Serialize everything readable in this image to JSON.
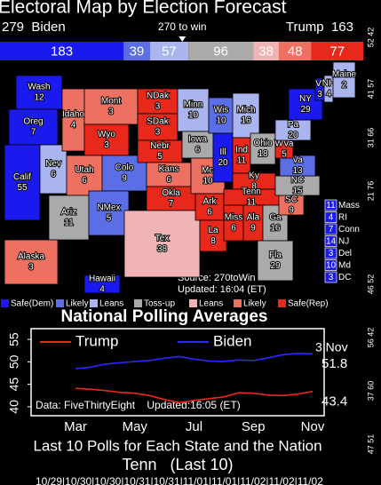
{
  "chart_data": [
    {
      "type": "stacked-bar",
      "title": "Electoral Map by Election Forecast",
      "left_label": "279  Biden",
      "right_label": "Trump  163",
      "threshold": {
        "value": 270,
        "label": "270 to win"
      },
      "series": [
        {
          "name": "Safe(Dem)",
          "color": "#1a1aee",
          "values": [
            183
          ]
        },
        {
          "name": "Likely",
          "color": "#5b6ee6",
          "values": [
            39
          ]
        },
        {
          "name": "Leans",
          "color": "#aab4ee",
          "values": [
            57
          ]
        },
        {
          "name": "Toss-up",
          "color": "#aaaaaa",
          "values": [
            96
          ]
        },
        {
          "name": "Leans",
          "color": "#f0b4b4",
          "values": [
            38
          ]
        },
        {
          "name": "Likely",
          "color": "#ee7060",
          "values": [
            48
          ]
        },
        {
          "name": "Safe(Rep)",
          "color": "#e8281a",
          "values": [
            77
          ]
        }
      ]
    },
    {
      "type": "line",
      "title": "National Polling Averages",
      "categories": [
        "Mar",
        null,
        null,
        null,
        "May",
        null,
        null,
        null,
        "Jul",
        null,
        null,
        null,
        "Sep",
        null,
        null,
        null,
        "Nov"
      ],
      "series": [
        {
          "name": "Trump",
          "color": "#e8281a",
          "values": [
            44.1,
            43.9,
            43.6,
            43.2,
            43.0,
            42.5,
            41.6,
            40.9,
            41.4,
            41.8,
            42.2,
            43.1,
            43.0,
            42.6,
            42.5,
            42.8,
            43.4
          ]
        },
        {
          "name": "Biden",
          "color": "#2a2aff",
          "values": [
            48.5,
            48.8,
            49.5,
            49.8,
            50.1,
            50.3,
            50.8,
            51.2,
            50.6,
            50.2,
            50.1,
            50.4,
            50.3,
            50.9,
            51.6,
            51.9,
            51.8
          ]
        }
      ],
      "end_label": "3 Nov",
      "note": "Data: FiveThirtyEight    Updated:16:05 (ET)",
      "ylim": [
        38,
        57
      ],
      "yticks": [
        40,
        45,
        50,
        55
      ]
    }
  ],
  "map": {
    "source": "Source: 270toWin",
    "updated": "Updated: 16:04 (ET)",
    "states": [
      {
        "label": "Wash",
        "ev": 12,
        "color": "#1a1aee"
      },
      {
        "label": "Oreg",
        "ev": 7,
        "color": "#1a1aee"
      },
      {
        "label": "Calif",
        "ev": 55,
        "color": "#1a1aee"
      },
      {
        "label": "Nev",
        "ev": 6,
        "color": "#aab4ee"
      },
      {
        "label": "Idaho",
        "ev": 4,
        "color": "#ee7060"
      },
      {
        "label": "Mont",
        "ev": 3,
        "color": "#ee7060"
      },
      {
        "label": "Wyo",
        "ev": 3,
        "color": "#e8281a"
      },
      {
        "label": "Utah",
        "ev": 6,
        "color": "#ee7060"
      },
      {
        "label": "Colo",
        "ev": 9,
        "color": "#5b6ee6"
      },
      {
        "label": "Ariz",
        "ev": 11,
        "color": "#aaaaaa"
      },
      {
        "label": "NMex",
        "ev": 5,
        "color": "#5b6ee6"
      },
      {
        "label": "NDak",
        "ev": 3,
        "color": "#e8281a"
      },
      {
        "label": "SDak",
        "ev": 3,
        "color": "#e8281a"
      },
      {
        "label": "Nebr",
        "ev": 5,
        "color": "#e8281a"
      },
      {
        "label": "Kans",
        "ev": 6,
        "color": "#ee7060"
      },
      {
        "label": "Okla",
        "ev": 7,
        "color": "#e8281a"
      },
      {
        "label": "Tex",
        "ev": 38,
        "color": "#f0b4b4"
      },
      {
        "label": "Minn",
        "ev": 10,
        "color": "#aab4ee"
      },
      {
        "label": "Iowa",
        "ev": 6,
        "color": "#aaaaaa"
      },
      {
        "label": "Mo",
        "ev": 10,
        "color": "#ee7060"
      },
      {
        "label": "Ark",
        "ev": 6,
        "color": "#e8281a"
      },
      {
        "label": "La",
        "ev": 8,
        "color": "#e8281a"
      },
      {
        "label": "Wis",
        "ev": 10,
        "color": "#5b6ee6"
      },
      {
        "label": "Ill",
        "ev": 20,
        "color": "#1a1aee"
      },
      {
        "label": "Mich",
        "ev": 16,
        "color": "#aab4ee"
      },
      {
        "label": "Ind",
        "ev": 11,
        "color": "#e8281a"
      },
      {
        "label": "Ohio",
        "ev": 18,
        "color": "#aaaaaa"
      },
      {
        "label": "Ky",
        "ev": 8,
        "color": "#e8281a"
      },
      {
        "label": "Tenn",
        "ev": 11,
        "color": "#e8281a"
      },
      {
        "label": "Miss",
        "ev": 6,
        "color": "#e8281a"
      },
      {
        "label": "Ala",
        "ev": 9,
        "color": "#e8281a"
      },
      {
        "label": "Ga",
        "ev": 16,
        "color": "#aaaaaa"
      },
      {
        "label": "Fla",
        "ev": 29,
        "color": "#aaaaaa"
      },
      {
        "label": "SC",
        "ev": 9,
        "color": "#ee7060"
      },
      {
        "label": "NC",
        "ev": 15,
        "color": "#aaaaaa"
      },
      {
        "label": "Va",
        "ev": 13,
        "color": "#5b6ee6"
      },
      {
        "label": "WVa",
        "ev": 5,
        "color": "#e8281a"
      },
      {
        "label": "Pa",
        "ev": 20,
        "color": "#aab4ee"
      },
      {
        "label": "NY",
        "ev": 29,
        "color": "#1a1aee"
      },
      {
        "label": "Vt",
        "ev": 3,
        "color": "#1a1aee"
      },
      {
        "label": "NH",
        "ev": 4,
        "color": "#aab4ee"
      },
      {
        "label": "Maine",
        "ev": 2,
        "color": "#aab4ee"
      },
      {
        "label": "Alaska",
        "ev": 3,
        "color": "#ee7060"
      },
      {
        "label": "Hawaii",
        "ev": 4,
        "color": "#1a1aee"
      }
    ],
    "small_states": [
      {
        "label": "Mass",
        "ev": 11,
        "color": "#1a1aee"
      },
      {
        "label": "RI",
        "ev": 4,
        "color": "#1a1aee"
      },
      {
        "label": "Conn",
        "ev": 7,
        "color": "#1a1aee"
      },
      {
        "label": "NJ",
        "ev": 14,
        "color": "#1a1aee"
      },
      {
        "label": "Del",
        "ev": 3,
        "color": "#1a1aee"
      },
      {
        "label": "Md",
        "ev": 10,
        "color": "#1a1aee"
      },
      {
        "label": "DC",
        "ev": 3,
        "color": "#1a1aee"
      }
    ]
  },
  "side_labels": [
    "52 42",
    "41 57",
    "31 66",
    "21 76",
    "46 52",
    "56 42",
    "37 60",
    "47 51"
  ],
  "footer": {
    "title": "Last 10 Polls for Each State and the Nation",
    "subtitle": "Tenn   (Last 10)",
    "dates": "10/29|10/30|10/30|10/31|10/31|11/01|11/01|11/02|11/02|11/02"
  }
}
